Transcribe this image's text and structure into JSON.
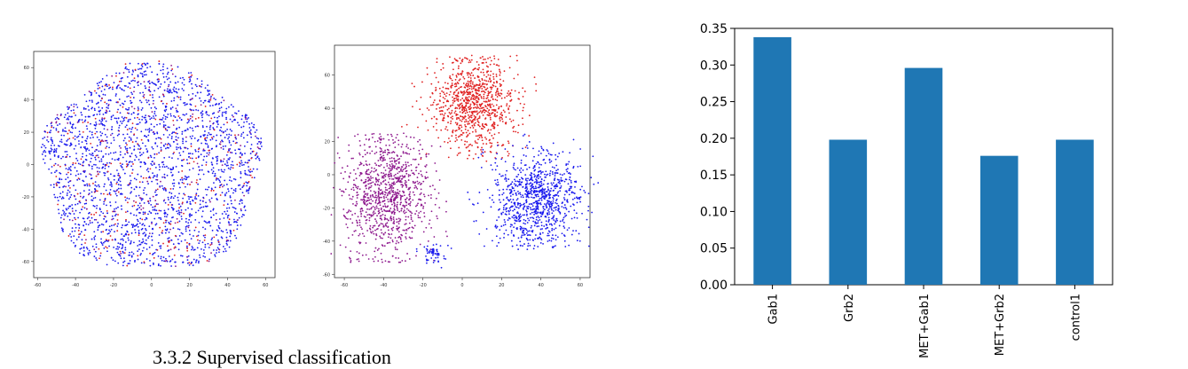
{
  "chart_data": [
    {
      "type": "scatter",
      "title": "",
      "xlim": [
        -62,
        65
      ],
      "ylim": [
        -70,
        70
      ],
      "xticks": [
        -60,
        -40,
        -20,
        0,
        20,
        40,
        60
      ],
      "yticks": [
        -60,
        -40,
        -20,
        0,
        20,
        40,
        60
      ],
      "series": [
        {
          "color": "#1a1aee",
          "description": "mixed cloud"
        },
        {
          "color": "#e02020"
        },
        {
          "color": "#8e1a8e"
        }
      ]
    },
    {
      "type": "scatter",
      "title": "",
      "xlim": [
        -65,
        65
      ],
      "ylim": [
        -62,
        78
      ],
      "xticks": [
        -60,
        -40,
        -20,
        0,
        20,
        40,
        60
      ],
      "yticks": [
        -60,
        -40,
        -20,
        0,
        20,
        40,
        60
      ],
      "series": [
        {
          "color": "#e02020"
        },
        {
          "color": "#8e1a8e"
        },
        {
          "color": "#1a1aee"
        }
      ]
    },
    {
      "type": "bar",
      "categories": [
        "Gab1",
        "Grb2",
        "MET+Gab1",
        "MET+Grb2",
        "control1"
      ],
      "values": [
        0.338,
        0.198,
        0.296,
        0.176,
        0.198
      ],
      "ylim": [
        0,
        0.35
      ],
      "yticks": [
        "0.00",
        "0.05",
        "0.10",
        "0.15",
        "0.20",
        "0.25",
        "0.30",
        "0.35"
      ],
      "bar_color": "#1f77b4",
      "title": "",
      "xlabel": "",
      "ylabel": ""
    }
  ],
  "caption": "3.3.2    Supervised classification"
}
